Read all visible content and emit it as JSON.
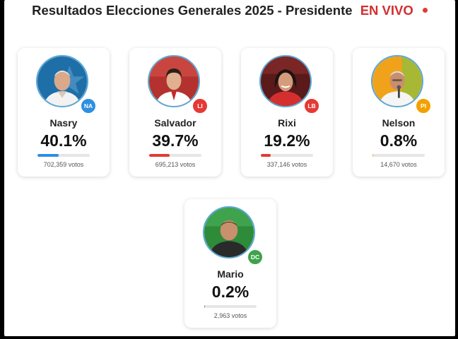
{
  "header": {
    "title": "Resultados Elecciones Generales 2025 - Presidente",
    "live_label": "EN VIVO"
  },
  "candidates": [
    {
      "name": "Nasry",
      "party": "NA",
      "percent": "40.1%",
      "share": 40.1,
      "votes": "702,359 votos",
      "color": "#2f8fe0"
    },
    {
      "name": "Salvador",
      "party": "LI",
      "percent": "39.7%",
      "share": 39.7,
      "votes": "695,213 votos",
      "color": "#e53935"
    },
    {
      "name": "Rixi",
      "party": "LB",
      "percent": "19.2%",
      "share": 19.2,
      "votes": "337,146 votos",
      "color": "#e53935"
    },
    {
      "name": "Nelson",
      "party": "PI",
      "percent": "0.8%",
      "share": 0.8,
      "votes": "14,670 votos",
      "color": "#f2a100"
    },
    {
      "name": "Mario",
      "party": "DC",
      "percent": "0.2%",
      "share": 0.2,
      "votes": "2,963 votos",
      "color": "#3fa34d"
    }
  ]
}
